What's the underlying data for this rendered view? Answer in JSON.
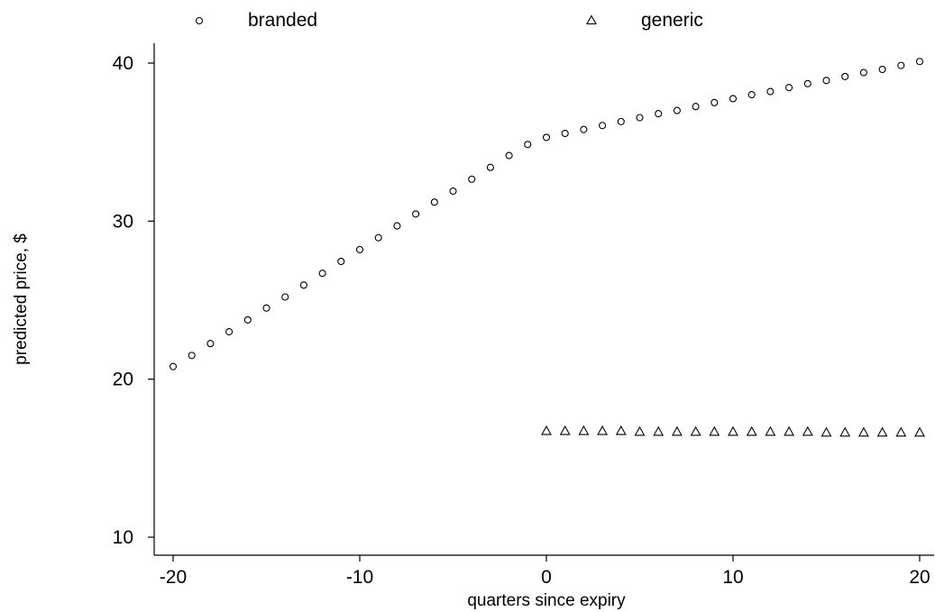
{
  "chart_data": {
    "type": "scatter",
    "title": "",
    "xlabel": "quarters since expiry",
    "ylabel": "predicted price, $",
    "xlim": [
      -20,
      20
    ],
    "ylim": [
      10,
      40
    ],
    "xticks": [
      -20,
      -10,
      0,
      10,
      20
    ],
    "yticks": [
      10,
      20,
      30,
      40
    ],
    "grid": false,
    "legend_position": "top",
    "series": [
      {
        "name": "branded",
        "marker": "circle",
        "color": "#000000",
        "points": [
          [
            -20,
            20.8
          ],
          [
            -19,
            21.5
          ],
          [
            -18,
            22.25
          ],
          [
            -17,
            23.0
          ],
          [
            -16,
            23.75
          ],
          [
            -15,
            24.5
          ],
          [
            -14,
            25.2
          ],
          [
            -13,
            25.95
          ],
          [
            -12,
            26.7
          ],
          [
            -11,
            27.45
          ],
          [
            -10,
            28.2
          ],
          [
            -9,
            28.95
          ],
          [
            -8,
            29.7
          ],
          [
            -7,
            30.45
          ],
          [
            -6,
            31.2
          ],
          [
            -5,
            31.9
          ],
          [
            -4,
            32.65
          ],
          [
            -3,
            33.4
          ],
          [
            -2,
            34.15
          ],
          [
            -1,
            34.85
          ],
          [
            0,
            35.3
          ],
          [
            1,
            35.55
          ],
          [
            2,
            35.8
          ],
          [
            3,
            36.05
          ],
          [
            4,
            36.3
          ],
          [
            5,
            36.55
          ],
          [
            6,
            36.8
          ],
          [
            7,
            37.0
          ],
          [
            8,
            37.25
          ],
          [
            9,
            37.5
          ],
          [
            10,
            37.75
          ],
          [
            11,
            38.0
          ],
          [
            12,
            38.2
          ],
          [
            13,
            38.45
          ],
          [
            14,
            38.7
          ],
          [
            15,
            38.9
          ],
          [
            16,
            39.15
          ],
          [
            17,
            39.4
          ],
          [
            18,
            39.6
          ],
          [
            19,
            39.85
          ],
          [
            20,
            40.1
          ]
        ]
      },
      {
        "name": "generic",
        "marker": "triangle",
        "color": "#000000",
        "points": [
          [
            0,
            16.7
          ],
          [
            1,
            16.7
          ],
          [
            2,
            16.7
          ],
          [
            3,
            16.7
          ],
          [
            4,
            16.7
          ],
          [
            5,
            16.65
          ],
          [
            6,
            16.65
          ],
          [
            7,
            16.65
          ],
          [
            8,
            16.65
          ],
          [
            9,
            16.65
          ],
          [
            10,
            16.65
          ],
          [
            11,
            16.65
          ],
          [
            12,
            16.65
          ],
          [
            13,
            16.65
          ],
          [
            14,
            16.65
          ],
          [
            15,
            16.6
          ],
          [
            16,
            16.6
          ],
          [
            17,
            16.6
          ],
          [
            18,
            16.6
          ],
          [
            19,
            16.6
          ],
          [
            20,
            16.6
          ]
        ]
      }
    ]
  }
}
